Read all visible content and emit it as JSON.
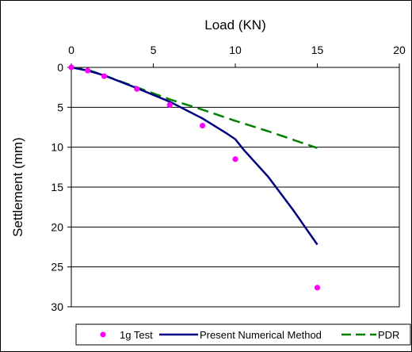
{
  "chart_data": {
    "type": "line",
    "title": "",
    "xlabel": "Load (KN)",
    "ylabel": "Settlement (mm)",
    "xlim": [
      0,
      20
    ],
    "ylim": [
      0,
      30
    ],
    "x_ticks": [
      "0",
      "5",
      "10",
      "15",
      "20"
    ],
    "y_ticks": [
      "0",
      "5",
      "10",
      "15",
      "20",
      "25",
      "30"
    ],
    "x_axis_position": "top",
    "y_axis_inverted": true,
    "grid": "horizontal",
    "legend_position": "bottom",
    "series": [
      {
        "name": "1g Test",
        "style": "markers",
        "color": "#ff00ff",
        "points": [
          [
            0,
            0
          ],
          [
            1,
            0.4
          ],
          [
            2,
            1.1
          ],
          [
            4,
            2.7
          ],
          [
            6,
            4.7
          ],
          [
            8,
            7.3
          ],
          [
            10,
            11.5
          ],
          [
            15,
            27.6
          ]
        ]
      },
      {
        "name": "Present Numerical Method",
        "style": "solid",
        "color": "#000080",
        "points": [
          [
            0,
            0
          ],
          [
            1,
            0.4
          ],
          [
            2,
            1.0
          ],
          [
            4,
            2.6
          ],
          [
            6,
            4.3
          ],
          [
            8,
            6.4
          ],
          [
            9.5,
            8.3
          ],
          [
            10,
            9.0
          ],
          [
            10.5,
            10.3
          ],
          [
            12,
            13.7
          ],
          [
            13.5,
            17.8
          ],
          [
            15,
            22.2
          ]
        ]
      },
      {
        "name": "PDR",
        "style": "dashed",
        "color": "#008000",
        "points": [
          [
            0,
            0
          ],
          [
            1,
            0.3
          ],
          [
            2,
            1.0
          ],
          [
            4,
            2.5
          ],
          [
            6,
            4.0
          ],
          [
            8,
            5.3
          ],
          [
            10,
            6.7
          ],
          [
            12,
            8.0
          ],
          [
            15,
            10.1
          ]
        ]
      }
    ]
  }
}
